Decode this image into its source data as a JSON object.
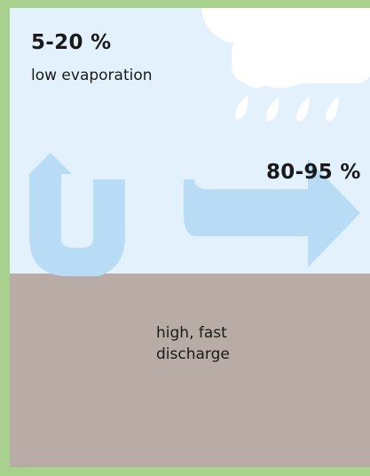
{
  "evaporation": {
    "percent": "5-20 %",
    "label": "low evaporation"
  },
  "discharge": {
    "percent": "80-95 %",
    "label": "high, fast discharge"
  },
  "colors": {
    "frame": "#a8d18d",
    "sky": "#e2f1fc",
    "ground": "#b9aca6",
    "arrow": "#b8dcf6",
    "cloud": "#ffffff",
    "text": "#1a1a1a"
  },
  "icons": [
    "cloud-icon",
    "raindrop-icon",
    "water-flow-arrow-icon"
  ]
}
